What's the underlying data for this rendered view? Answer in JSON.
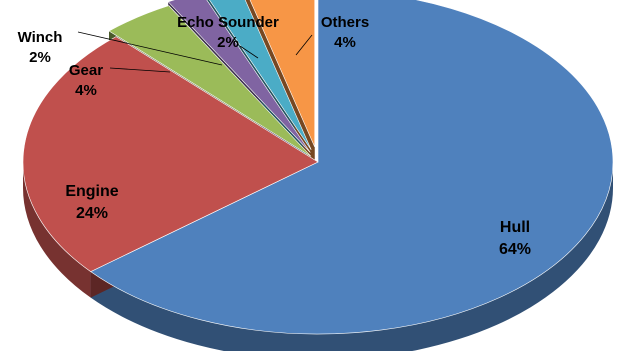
{
  "chart_data": {
    "type": "pie",
    "style": "3d-exploded",
    "title": "",
    "legend": "none",
    "slices": [
      {
        "name": "Hull",
        "value": 64,
        "label": "64%",
        "color": "#4f81bd"
      },
      {
        "name": "Engine",
        "value": 24,
        "label": "24%",
        "color": "#c0504d"
      },
      {
        "name": "Gear",
        "value": 4,
        "label": "4%",
        "color": "#9bbb59"
      },
      {
        "name": "Winch",
        "value": 2,
        "label": "2%",
        "color": "#8064a2"
      },
      {
        "name": "Echo Sounder",
        "value": 2,
        "label": "2%",
        "color": "#4bacc6"
      },
      {
        "name": "Others",
        "value": 4,
        "label": "4%",
        "color": "#f79646"
      }
    ]
  }
}
